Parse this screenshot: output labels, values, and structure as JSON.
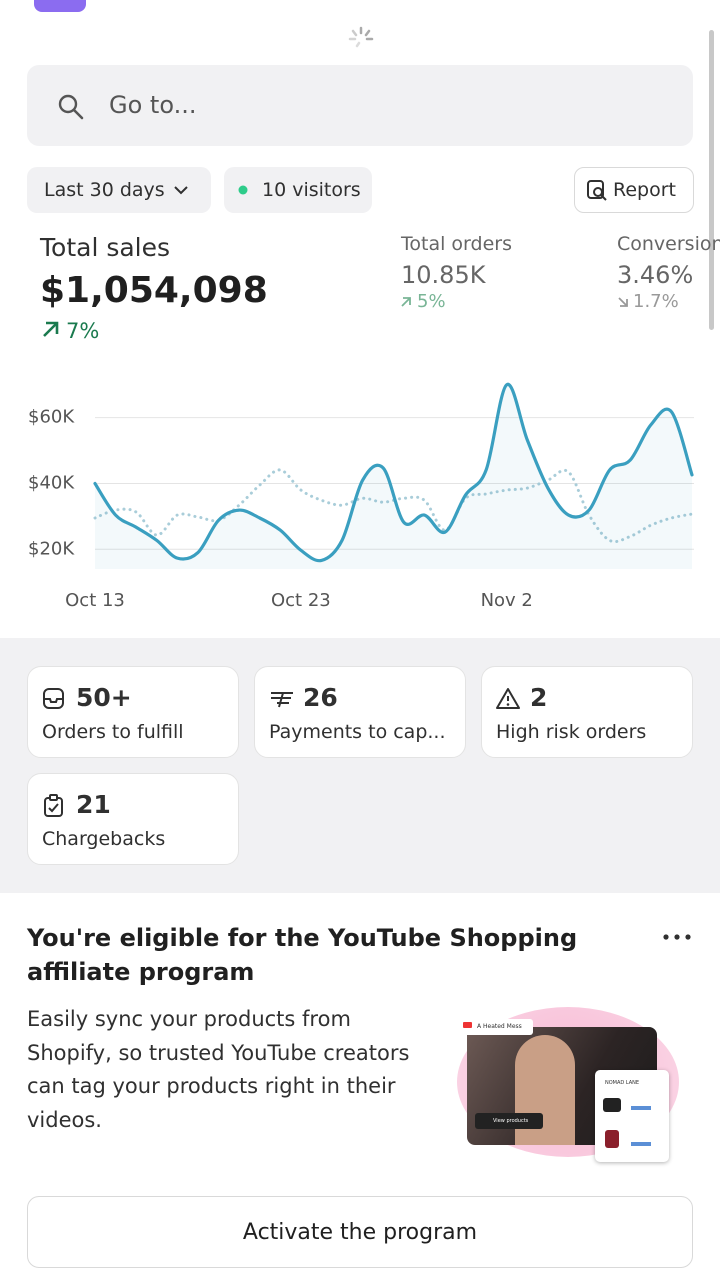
{
  "search": {
    "placeholder": "Go to..."
  },
  "filters": {
    "range": "Last 30 days",
    "visitors": "10 visitors",
    "report": "Report"
  },
  "metrics": {
    "total_sales": {
      "label": "Total sales",
      "value": "$1,054,098",
      "change": "7%"
    },
    "total_orders": {
      "label": "Total orders",
      "value": "10.85K",
      "change": "5%"
    },
    "conversion": {
      "label": "Conversion",
      "value": "3.46%",
      "change": "1.7%"
    }
  },
  "chart_data": {
    "type": "line",
    "categories": [
      "Oct 13",
      null,
      null,
      null,
      null,
      null,
      null,
      null,
      null,
      null,
      "Oct 23",
      null,
      null,
      null,
      null,
      null,
      null,
      null,
      null,
      null,
      "Nov 2",
      null,
      null,
      null,
      null,
      null,
      null,
      null,
      null,
      null
    ],
    "series": [
      {
        "color": "#3a9fc0",
        "style": "solid",
        "values": [
          40000,
          30400,
          26700,
          22700,
          17300,
          19000,
          28800,
          31900,
          29500,
          25800,
          19700,
          16600,
          22700,
          41000,
          44700,
          28200,
          30400,
          25200,
          36500,
          44100,
          70000,
          53200,
          38600,
          30400,
          31900,
          44100,
          47100,
          57800,
          61800,
          42600
        ]
      },
      {
        "color": "#a9cdd9",
        "style": "dotted",
        "values": [
          29500,
          31900,
          31300,
          24300,
          30400,
          29800,
          28800,
          33400,
          39500,
          44100,
          38000,
          34900,
          33400,
          35500,
          34300,
          35500,
          34900,
          25800,
          35500,
          36800,
          38000,
          38600,
          41000,
          43500,
          30400,
          22700,
          23900,
          27300,
          29500,
          30700
        ]
      }
    ],
    "ylim": [
      14000,
      76000
    ],
    "yticks": [
      {
        "value": 20000,
        "label": "$20K"
      },
      {
        "value": 40000,
        "label": "$40K"
      },
      {
        "value": 60000,
        "label": "$60K"
      }
    ],
    "grid": true
  },
  "tasks": [
    {
      "count": "50+",
      "label": "Orders to fulfill"
    },
    {
      "count": "26",
      "label": "Payments to cap..."
    },
    {
      "count": "2",
      "label": "High risk orders"
    },
    {
      "count": "21",
      "label": "Chargebacks"
    }
  ],
  "promo": {
    "title": "You're eligible for the YouTube Shopping affiliate program",
    "body": "Easily sync your products from Shopify, so trusted YouTube creators can tag your products right in their videos.",
    "image": {
      "video_title": "A Heated Mess",
      "store": "NOMAD LANE",
      "cta": "View products"
    },
    "button": "Activate the program"
  }
}
